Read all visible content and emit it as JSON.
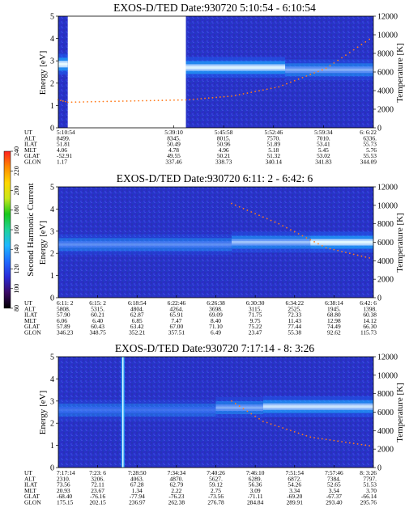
{
  "chart_data": [
    {
      "type": "heatmap",
      "title": "EXOS-D/TED   Date:930720  5:10:54 - 6:10:54",
      "ylabel": "Energy [eV]",
      "y2label": "Temperature [K]",
      "ylim": [
        0,
        5
      ],
      "yticks": [
        "0",
        "1",
        "2",
        "3",
        "4",
        "5"
      ],
      "y2lim": [
        0,
        12000
      ],
      "y2ticks": [
        "0",
        "2000",
        "4000",
        "6000",
        "8000",
        "10000",
        "12000"
      ],
      "data_gap": [
        0.03,
        0.405
      ],
      "bands": [
        {
          "x0": 0.0,
          "x1": 0.03,
          "y": 2.85,
          "intensity": 0.95
        },
        {
          "x0": 0.405,
          "x1": 0.72,
          "y": 2.7,
          "intensity": 0.85
        },
        {
          "x0": 0.72,
          "x1": 1.0,
          "y": 2.6,
          "intensity": 0.45
        }
      ],
      "temperature_trace": [
        [
          0.0,
          3000
        ],
        [
          0.03,
          2750
        ],
        [
          0.405,
          3000
        ],
        [
          0.55,
          3400
        ],
        [
          0.7,
          4400
        ],
        [
          0.85,
          6400
        ],
        [
          1.0,
          9800
        ]
      ],
      "rows": [
        {
          "label": "UT",
          "values": [
            "5:10:54",
            "5:39:10",
            "5:45:58",
            "5:52:46",
            "5:59:34",
            "6: 6:22"
          ]
        },
        {
          "label": "ALT",
          "values": [
            "8499.",
            "8345.",
            "8015.",
            "7570.",
            "7010.",
            "6336."
          ]
        },
        {
          "label": "ILAT",
          "values": [
            "51.81",
            "50.49",
            "50.96",
            "51.89",
            "53.41",
            "55.73"
          ]
        },
        {
          "label": "MLT",
          "values": [
            "4.06",
            "4.78",
            "4.96",
            "5.18",
            "5.45",
            "5.76"
          ]
        },
        {
          "label": "GLAT",
          "values": [
            "-52.91",
            "49.55",
            "50.21",
            "51.32",
            "53.02",
            "55.53"
          ]
        },
        {
          "label": "GLON",
          "values": [
            "1.17",
            "337.46",
            "338.73",
            "340.14",
            "341.83",
            "344.09"
          ]
        }
      ]
    },
    {
      "type": "heatmap",
      "title": "EXOS-D/TED   Date:930720  6:11: 2 - 6:42: 6",
      "ylabel": "Energy [eV]",
      "y2label": "Temperature [K]",
      "ylim": [
        0,
        5
      ],
      "yticks": [
        "0",
        "1",
        "2",
        "3",
        "4",
        "5"
      ],
      "y2lim": [
        0,
        12000
      ],
      "y2ticks": [
        "0",
        "2000",
        "4000",
        "6000",
        "8000",
        "10000",
        "12000"
      ],
      "bands": [
        {
          "x0": 0.0,
          "x1": 0.55,
          "y": 2.4,
          "intensity": 0.3
        },
        {
          "x0": 0.55,
          "x1": 0.8,
          "y": 2.5,
          "intensity": 0.55
        },
        {
          "x0": 0.8,
          "x1": 1.0,
          "y": 2.5,
          "intensity": 0.9
        }
      ],
      "temperature_trace": [
        [
          0.55,
          10200
        ],
        [
          0.7,
          8000
        ],
        [
          0.85,
          5400
        ],
        [
          1.0,
          4200
        ]
      ],
      "rows": [
        {
          "label": "UT",
          "values": [
            "6:11: 2",
            "6:15: 2",
            "6:18:54",
            "6:22:46",
            "6:26:38",
            "6:30:30",
            "6:34:22",
            "6:38:14",
            "6:42: 6"
          ]
        },
        {
          "label": "ALT",
          "values": [
            "5808.",
            "5315.",
            "4804.",
            "4264.",
            "3698.",
            "3115.",
            "2525.",
            "1945.",
            "1398."
          ]
        },
        {
          "label": "ILAT",
          "values": [
            "57.90",
            "60.21",
            "62.87",
            "65.91",
            "69.09",
            "71.75",
            "72.33",
            "68.80",
            "60.38"
          ]
        },
        {
          "label": "MLT",
          "values": [
            "6.06",
            "6.40",
            "6.85",
            "7.47",
            "8.40",
            "9.75",
            "11.43",
            "12.98",
            "14.12"
          ]
        },
        {
          "label": "GLAT",
          "values": [
            "57.89",
            "60.43",
            "63.42",
            "67.00",
            "71.10",
            "75.22",
            "77.44",
            "74.49",
            "66.30"
          ]
        },
        {
          "label": "GLON",
          "values": [
            "346.23",
            "348.75",
            "352.21",
            "357.51",
            "6.49",
            "23.47",
            "55.38",
            "92.62",
            "115.73"
          ]
        }
      ]
    },
    {
      "type": "heatmap",
      "title": "EXOS-D/TED   Date:930720  7:17:14 - 8: 3:26",
      "ylabel": "Energy [eV]",
      "y2label": "Temperature [K]",
      "ylim": [
        0,
        5
      ],
      "yticks": [
        "0",
        "1",
        "2",
        "3",
        "4",
        "5"
      ],
      "y2lim": [
        0,
        12000
      ],
      "y2ticks": [
        "0",
        "2000",
        "4000",
        "6000",
        "8000",
        "10000",
        "12000"
      ],
      "spike_x": 0.205,
      "bands": [
        {
          "x0": 0.0,
          "x1": 0.5,
          "y": 2.6,
          "intensity": 0.15
        },
        {
          "x0": 0.5,
          "x1": 0.65,
          "y": 2.7,
          "intensity": 0.45
        },
        {
          "x0": 0.65,
          "x1": 1.0,
          "y": 2.75,
          "intensity": 0.75
        }
      ],
      "temperature_trace": [
        [
          0.55,
          7200
        ],
        [
          0.65,
          5000
        ],
        [
          0.8,
          3300
        ],
        [
          1.0,
          2300
        ]
      ],
      "rows": [
        {
          "label": "UT",
          "values": [
            "7:17:14",
            "7:23: 6",
            "7:28:50",
            "7:34:34",
            "7:40:26",
            "7:46:10",
            "7:51:54",
            "7:57:46",
            "8: 3:26"
          ]
        },
        {
          "label": "ALT",
          "values": [
            "2310.",
            "3206.",
            "4063.",
            "4870.",
            "5627.",
            "6289.",
            "6872.",
            "7384.",
            "7797."
          ]
        },
        {
          "label": "ILAT",
          "values": [
            "73.56",
            "72.11",
            "67.28",
            "62.79",
            "59.12",
            "56.36",
            "54.26",
            "52.65",
            "51.53"
          ]
        },
        {
          "label": "MLT",
          "values": [
            "20.93",
            "23.67",
            "1.34",
            "2.22",
            "2.75",
            "3.09",
            "3.34",
            "3.54",
            "3.70"
          ]
        },
        {
          "label": "GLAT",
          "values": [
            "-68.40",
            "-76.16",
            "-77.94",
            "-76.23",
            "-73.56",
            "-71.11",
            "-69.20",
            "-67.37",
            "-66.14"
          ]
        },
        {
          "label": "GLON",
          "values": [
            "175.15",
            "202.15",
            "236.97",
            "262.38",
            "276.78",
            "284.84",
            "289.91",
            "293.40",
            "295.76"
          ]
        }
      ]
    }
  ],
  "colorbar": {
    "label": "Second Harmonic Current",
    "ticks": [
      "80",
      "100",
      "120",
      "140",
      "160",
      "180",
      "200",
      "220",
      "240"
    ],
    "colors": [
      "#000000",
      "#3b0a66",
      "#2a2ad8",
      "#1f6cff",
      "#1fb8ff",
      "#1fd29a",
      "#18c81a",
      "#c8e81a",
      "#ffd700",
      "#ff8a00",
      "#ff2020"
    ]
  }
}
